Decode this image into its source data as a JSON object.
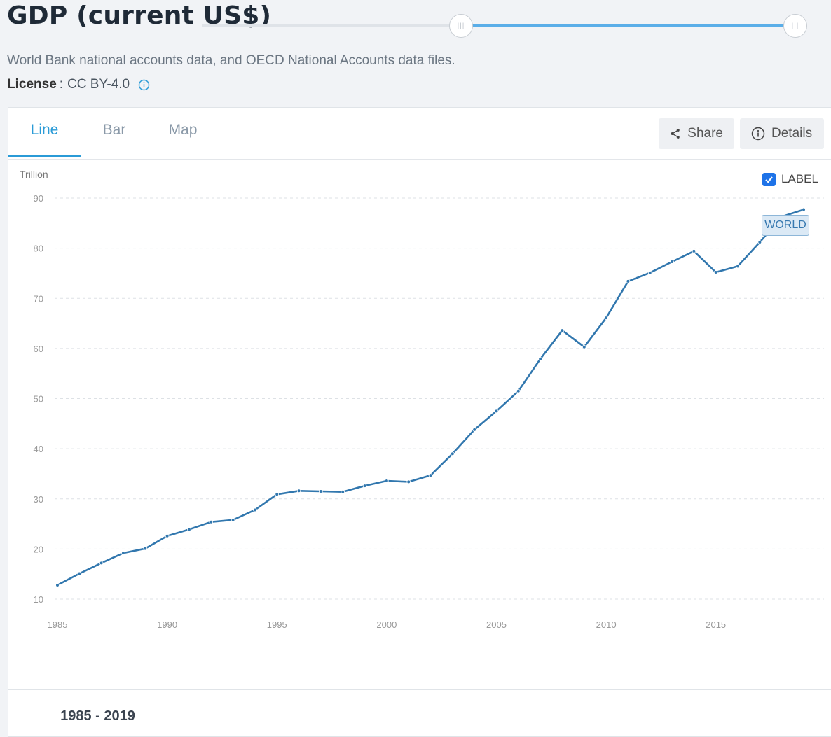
{
  "header": {
    "title": "GDP (current US$)",
    "source": "World Bank national accounts data, and OECD National Accounts data files.",
    "license_label": "License",
    "license_value": "CC BY-4.0"
  },
  "tabs": [
    {
      "label": "Line",
      "active": true
    },
    {
      "label": "Bar",
      "active": false
    },
    {
      "label": "Map",
      "active": false
    }
  ],
  "toolbar": {
    "share_label": "Share",
    "details_label": "Details"
  },
  "label_toggle": {
    "label": "LABEL",
    "checked": true
  },
  "range": {
    "label": "1985 - 2019",
    "start": 1985,
    "end": 2019
  },
  "colors": {
    "accent": "#2a9bd7",
    "series": "#3177ae",
    "checkbox": "#1e73e8"
  },
  "chart_data": {
    "type": "line",
    "ylabel": "Trillion",
    "ylim": [
      10,
      90
    ],
    "yticks": [
      10,
      20,
      30,
      40,
      50,
      60,
      70,
      80,
      90
    ],
    "xticks": [
      1985,
      1990,
      1995,
      2000,
      2005,
      2010,
      2015
    ],
    "grid": true,
    "series": [
      {
        "name": "WORLD",
        "x": [
          1985,
          1986,
          1987,
          1988,
          1989,
          1990,
          1991,
          1992,
          1993,
          1994,
          1995,
          1996,
          1997,
          1998,
          1999,
          2000,
          2001,
          2002,
          2003,
          2004,
          2005,
          2006,
          2007,
          2008,
          2009,
          2010,
          2011,
          2012,
          2013,
          2014,
          2015,
          2016,
          2017,
          2018,
          2019
        ],
        "values": [
          12.8,
          15.1,
          17.2,
          19.2,
          20.1,
          22.6,
          23.9,
          25.4,
          25.8,
          27.8,
          30.9,
          31.6,
          31.5,
          31.4,
          32.6,
          33.6,
          33.4,
          34.7,
          39.0,
          43.8,
          47.5,
          51.5,
          57.9,
          63.6,
          60.3,
          66.1,
          73.4,
          75.1,
          77.3,
          79.4,
          75.2,
          76.4,
          81.2,
          86.3,
          87.7
        ]
      }
    ]
  }
}
